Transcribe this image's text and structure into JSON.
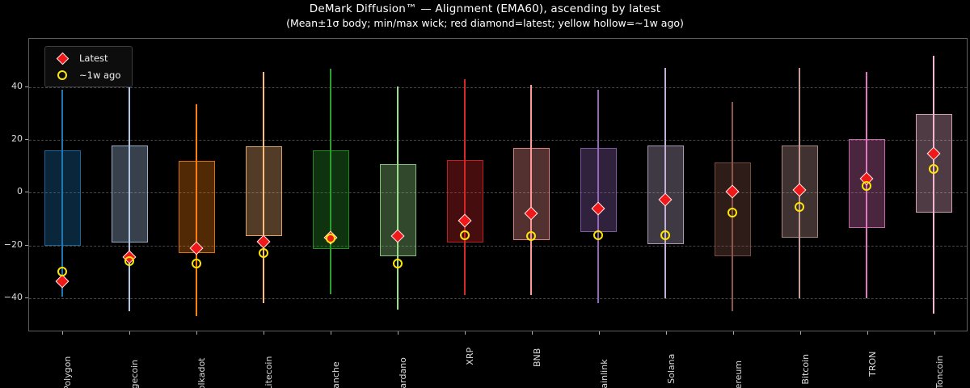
{
  "page": {
    "background": "#000000"
  },
  "header": {
    "title": "DeMark Diffusion™ — Alignment (EMA60), ascending by latest",
    "subtitle": "(Mean±1σ body; min/max wick; red diamond=latest; yellow hollow=~1w ago)"
  },
  "legend": {
    "position": "upper-left",
    "items": [
      {
        "label": "Latest",
        "marker": "red-diamond"
      },
      {
        "label": "~1w ago",
        "marker": "yellow-hollow-circle"
      }
    ]
  },
  "colors": {
    "background": "#000000",
    "latest_marker": "#f01818",
    "latest_marker_edge": "#ffffff",
    "week_ago_ring": "#ffe600",
    "grid": "#474747",
    "spine": "#5f5f5f",
    "tick_text": "#dcdcdc",
    "title_text": "#ffffff"
  },
  "chart_data": {
    "type": "boxplot",
    "title": "DeMark Diffusion™ — Alignment (EMA60), ascending by latest",
    "subtitle": "(Mean±1σ body; min/max wick; red diamond=latest; yellow hollow=~1w ago)",
    "xlabel": "",
    "ylabel": "",
    "ylim": [
      -53,
      58.5
    ],
    "yticks": [
      40,
      20,
      0,
      -20,
      -40
    ],
    "grid": "horizontal-dashed",
    "legend_position": "upper-left",
    "body_definition": "mean ± 1 sigma",
    "wick_definition": "min / max",
    "categories": [
      "Polygon",
      "Dogecoin",
      "Polkadot",
      "Litecoin",
      "Avalanche",
      "Cardano",
      "XRP",
      "BNB",
      "Chainlink",
      "Solana",
      "Ethereum",
      "Bitcoin",
      "TRON",
      "Toncoin"
    ],
    "series": [
      {
        "name": "Polygon",
        "color": "#1f77b4",
        "box_top": 16,
        "box_bottom": -20,
        "wick_high": 39,
        "wick_low": -39.5,
        "latest": -33.5,
        "week_ago": -30
      },
      {
        "name": "Dogecoin",
        "color": "#aec7e8",
        "box_top": 18,
        "box_bottom": -19,
        "wick_high": 43,
        "wick_low": -45,
        "latest": -24.5,
        "week_ago": -26
      },
      {
        "name": "Polkadot",
        "color": "#ff7f0e",
        "box_top": 12,
        "box_bottom": -23,
        "wick_high": 33.5,
        "wick_low": -47,
        "latest": -21,
        "week_ago": -27
      },
      {
        "name": "Litecoin",
        "color": "#ffbb78",
        "box_top": 17.5,
        "box_bottom": -16.5,
        "wick_high": 46,
        "wick_low": -42,
        "latest": -18.5,
        "week_ago": -23
      },
      {
        "name": "Avalanche",
        "color": "#2ca02c",
        "box_top": 16,
        "box_bottom": -21.5,
        "wick_high": 47,
        "wick_low": -38.5,
        "latest": -17,
        "week_ago": -17.5
      },
      {
        "name": "Cardano",
        "color": "#98df8a",
        "box_top": 11,
        "box_bottom": -24,
        "wick_high": 40.5,
        "wick_low": -44.5,
        "latest": -16.5,
        "week_ago": -27
      },
      {
        "name": "XRP",
        "color": "#d62728",
        "box_top": 12.5,
        "box_bottom": -19,
        "wick_high": 43,
        "wick_low": -39,
        "latest": -10.5,
        "week_ago": -16
      },
      {
        "name": "BNB",
        "color": "#ff9896",
        "box_top": 17,
        "box_bottom": -18,
        "wick_high": 41,
        "wick_low": -39,
        "latest": -8,
        "week_ago": -16.5
      },
      {
        "name": "Chainlink",
        "color": "#9467bd",
        "box_top": 17,
        "box_bottom": -15,
        "wick_high": 39,
        "wick_low": -42,
        "latest": -6,
        "week_ago": -16
      },
      {
        "name": "Solana",
        "color": "#c5b0d5",
        "box_top": 18,
        "box_bottom": -19.5,
        "wick_high": 47.5,
        "wick_low": -40,
        "latest": -2.5,
        "week_ago": -16
      },
      {
        "name": "Ethereum",
        "color": "#8c564b",
        "box_top": 11.5,
        "box_bottom": -24,
        "wick_high": 34.5,
        "wick_low": -45,
        "latest": 0.5,
        "week_ago": -7.5
      },
      {
        "name": "Bitcoin",
        "color": "#c49c94",
        "box_top": 18,
        "box_bottom": -17,
        "wick_high": 47.5,
        "wick_low": -40,
        "latest": 1,
        "week_ago": -5.5
      },
      {
        "name": "TRON",
        "color": "#e377c2",
        "box_top": 20.5,
        "box_bottom": -13.5,
        "wick_high": 46,
        "wick_low": -40,
        "latest": 5.5,
        "week_ago": 2.5
      },
      {
        "name": "Toncoin",
        "color": "#f7b6d2",
        "box_top": 30,
        "box_bottom": -7.5,
        "wick_high": 52,
        "wick_low": -46,
        "latest": 15,
        "week_ago": 9
      }
    ]
  }
}
